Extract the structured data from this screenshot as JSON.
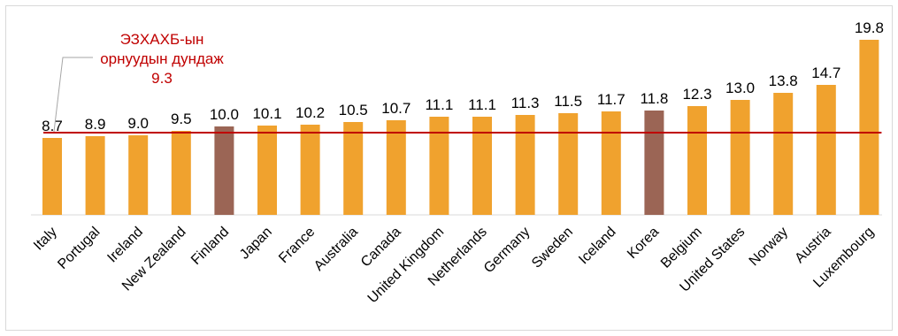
{
  "chart_data": {
    "type": "bar",
    "title": "",
    "xlabel": "",
    "ylabel": "",
    "ylim": [
      0,
      21
    ],
    "grid": false,
    "categories": [
      "Italy",
      "Portugal",
      "Ireland",
      "New Zealand",
      "Finland",
      "Japan",
      "France",
      "Australia",
      "Canada",
      "United Kingdom",
      "Netherlands",
      "Germany",
      "Sweden",
      "Iceland",
      "Korea",
      "Belgium",
      "United States",
      "Norway",
      "Austria",
      "Luxembourg"
    ],
    "values": [
      8.7,
      8.9,
      9.0,
      9.5,
      10.0,
      10.1,
      10.2,
      10.5,
      10.7,
      11.1,
      11.1,
      11.3,
      11.5,
      11.7,
      11.8,
      12.3,
      13.0,
      13.8,
      14.7,
      19.8
    ],
    "value_labels": [
      "8.7",
      "8.9",
      "9.0",
      "9.5",
      "10.0",
      "10.1",
      "10.2",
      "10.5",
      "10.7",
      "11.1",
      "11.1",
      "11.3",
      "11.5",
      "11.7",
      "11.8",
      "12.3",
      "13.0",
      "13.8",
      "14.7",
      "19.8"
    ],
    "highlighted": [
      "Finland",
      "Korea"
    ],
    "colors": {
      "default": "#f0a22e",
      "highlight": "#9b6555",
      "average_line": "#c00000",
      "leader_line": "#a6a6a6"
    },
    "reference_line": {
      "value": 9.3,
      "label_lines": [
        "ЭЗХАХБ-ын",
        "орнуудын дундаж",
        "9.3"
      ]
    }
  }
}
